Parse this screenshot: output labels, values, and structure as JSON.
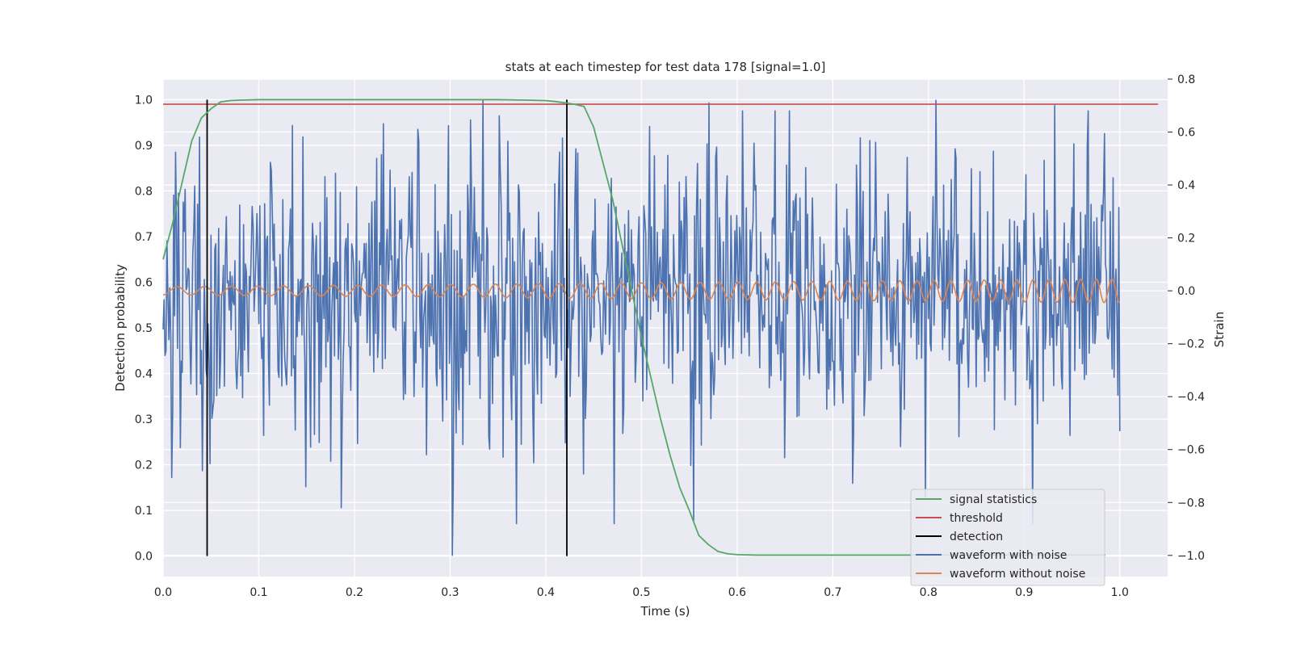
{
  "chart_data": {
    "type": "line",
    "title": "stats at each timestep for test data 178 [signal=1.0]",
    "xlabel": "Time (s)",
    "ylabel": "Detection probability",
    "y2label": "Strain",
    "xlim": [
      0.0,
      1.05
    ],
    "ylim": [
      -0.045,
      1.045
    ],
    "y2lim": [
      -1.08,
      0.8
    ],
    "xticks": [
      "0.0",
      "0.1",
      "0.2",
      "0.3",
      "0.4",
      "0.5",
      "0.6",
      "0.7",
      "0.8",
      "0.9",
      "1.0"
    ],
    "yticks": [
      "0.0",
      "0.1",
      "0.2",
      "0.3",
      "0.4",
      "0.5",
      "0.6",
      "0.7",
      "0.8",
      "0.9",
      "1.0"
    ],
    "y2ticks": [
      "−1.0",
      "−0.8",
      "−0.6",
      "−0.4",
      "−0.2",
      "0.0",
      "0.2",
      "0.4",
      "0.6",
      "0.8"
    ],
    "grid": true,
    "legend_position": "lower-right",
    "colors": {
      "background": "#eaeaf2",
      "grid": "#ffffff",
      "signal_statistics": "#55a868",
      "threshold": "#c44e52",
      "detection": "#000000",
      "waveform_with_noise": "#4c72b0",
      "waveform_without_noise": "#dd8452"
    },
    "series": [
      {
        "name": "signal statistics",
        "axis": "left",
        "x": [
          0.0,
          0.01,
          0.02,
          0.03,
          0.04,
          0.05,
          0.06,
          0.07,
          0.08,
          0.1,
          0.15,
          0.2,
          0.25,
          0.3,
          0.35,
          0.38,
          0.4,
          0.41,
          0.42,
          0.43,
          0.44,
          0.45,
          0.46,
          0.47,
          0.48,
          0.49,
          0.5,
          0.51,
          0.52,
          0.53,
          0.54,
          0.55,
          0.56,
          0.57,
          0.58,
          0.59,
          0.6,
          0.62,
          0.65,
          0.7,
          0.8,
          0.9,
          0.985
        ],
        "y": [
          0.65,
          0.73,
          0.82,
          0.91,
          0.96,
          0.98,
          0.995,
          0.998,
          0.999,
          1.0,
          1.0,
          1.0,
          1.0,
          1.0,
          1.0,
          0.999,
          0.998,
          0.996,
          0.993,
          0.99,
          0.985,
          0.94,
          0.86,
          0.78,
          0.68,
          0.58,
          0.48,
          0.39,
          0.3,
          0.22,
          0.15,
          0.1,
          0.045,
          0.025,
          0.01,
          0.005,
          0.003,
          0.002,
          0.002,
          0.002,
          0.002,
          0.002,
          0.002
        ]
      },
      {
        "name": "threshold",
        "axis": "left",
        "x": [
          0.0,
          1.04
        ],
        "y": [
          0.99,
          0.99
        ]
      },
      {
        "name": "detection",
        "axis": "left",
        "type": "vlines",
        "x": [
          0.046,
          0.422
        ],
        "ymin": 0.0,
        "ymax": 1.0
      },
      {
        "name": "waveform with noise",
        "axis": "right",
        "x_start": 0.0,
        "x_end": 1.0,
        "points": 1000,
        "std": 0.28,
        "extremes": [
          {
            "x": 0.302,
            "y": -1.0
          },
          {
            "x": 0.334,
            "y": 0.72
          },
          {
            "x": 0.571,
            "y": 0.71
          },
          {
            "x": 0.808,
            "y": 0.72
          },
          {
            "x": 0.932,
            "y": 0.7
          },
          {
            "x": 0.149,
            "y": -0.74
          },
          {
            "x": 0.555,
            "y": -0.87
          },
          {
            "x": 0.797,
            "y": -0.78
          },
          {
            "x": 0.041,
            "y": -0.68
          }
        ]
      },
      {
        "name": "waveform without noise",
        "axis": "right",
        "x_start": 0.0,
        "x_end": 1.0,
        "amplitude_start": 0.015,
        "amplitude_end": 0.045,
        "cycles_start_per_s": 34,
        "cycles_end_per_s": 62
      }
    ]
  }
}
